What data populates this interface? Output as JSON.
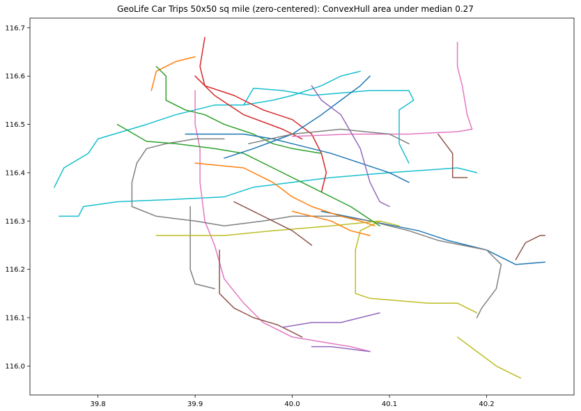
{
  "chart_data": {
    "type": "line",
    "title": "GeoLife Car Trips 50x50 sq mile (zero-centered): ConvexHull area under median 0.27",
    "xlabel": "",
    "ylabel": "",
    "xlim": [
      39.73,
      40.29
    ],
    "ylim": [
      115.94,
      116.72
    ],
    "x_ticks": [
      39.8,
      39.9,
      40.0,
      40.1,
      40.2
    ],
    "y_ticks": [
      116.0,
      116.1,
      116.2,
      116.3,
      116.4,
      116.5,
      116.6,
      116.7
    ],
    "x_tick_labels": [
      "39.8",
      "39.9",
      "40.0",
      "40.1",
      "40.2"
    ],
    "y_tick_labels": [
      "116.0",
      "116.1",
      "116.2",
      "116.3",
      "116.4",
      "116.5",
      "116.6",
      "116.7"
    ],
    "grid": false,
    "legend": false,
    "colors": [
      "#1f77b4",
      "#ff7f0e",
      "#2ca02c",
      "#d62728",
      "#9467bd",
      "#8c564b",
      "#e377c2",
      "#7f7f7f",
      "#bcbd22",
      "#17becf"
    ],
    "series": [
      {
        "color": "#17becf",
        "points": [
          [
            39.76,
            116.31
          ],
          [
            39.78,
            116.31
          ],
          [
            39.785,
            116.33
          ],
          [
            39.82,
            116.34
          ],
          [
            39.88,
            116.345
          ],
          [
            39.93,
            116.35
          ],
          [
            39.96,
            116.37
          ],
          [
            40.0,
            116.38
          ],
          [
            40.04,
            116.39
          ],
          [
            40.1,
            116.4
          ],
          [
            40.17,
            116.41
          ],
          [
            40.19,
            116.4
          ]
        ]
      },
      {
        "color": "#17becf",
        "points": [
          [
            39.755,
            116.37
          ],
          [
            39.765,
            116.41
          ],
          [
            39.79,
            116.44
          ],
          [
            39.8,
            116.47
          ],
          [
            39.85,
            116.5
          ],
          [
            39.88,
            116.52
          ],
          [
            39.92,
            116.54
          ],
          [
            39.95,
            116.54
          ],
          [
            39.98,
            116.55
          ],
          [
            40.0,
            116.56
          ],
          [
            40.03,
            116.58
          ],
          [
            40.05,
            116.6
          ],
          [
            40.07,
            116.61
          ]
        ]
      },
      {
        "color": "#17becf",
        "points": [
          [
            39.95,
            116.54
          ],
          [
            39.96,
            116.575
          ],
          [
            39.99,
            116.57
          ],
          [
            40.02,
            116.56
          ],
          [
            40.08,
            116.57
          ],
          [
            40.1,
            116.57
          ],
          [
            40.12,
            116.57
          ],
          [
            40.125,
            116.55
          ],
          [
            40.11,
            116.53
          ],
          [
            40.11,
            116.46
          ],
          [
            40.12,
            116.42
          ]
        ]
      },
      {
        "color": "#ff7f0e",
        "points": [
          [
            39.855,
            116.57
          ],
          [
            39.86,
            116.61
          ],
          [
            39.88,
            116.63
          ],
          [
            39.9,
            116.64
          ]
        ]
      },
      {
        "color": "#2ca02c",
        "points": [
          [
            39.86,
            116.62
          ],
          [
            39.87,
            116.6
          ],
          [
            39.87,
            116.55
          ],
          [
            39.89,
            116.53
          ],
          [
            39.91,
            116.52
          ],
          [
            39.93,
            116.5
          ],
          [
            39.96,
            116.48
          ],
          [
            39.98,
            116.46
          ],
          [
            40.0,
            116.45
          ],
          [
            40.03,
            116.44
          ]
        ]
      },
      {
        "color": "#d62728",
        "points": [
          [
            39.91,
            116.68
          ],
          [
            39.905,
            116.62
          ],
          [
            39.91,
            116.58
          ],
          [
            39.94,
            116.56
          ],
          [
            39.97,
            116.53
          ],
          [
            40.0,
            116.51
          ],
          [
            40.02,
            116.48
          ],
          [
            40.03,
            116.44
          ],
          [
            40.035,
            116.4
          ],
          [
            40.03,
            116.36
          ]
        ]
      },
      {
        "color": "#d62728",
        "points": [
          [
            39.9,
            116.6
          ],
          [
            39.92,
            116.56
          ],
          [
            39.95,
            116.52
          ],
          [
            39.99,
            116.49
          ],
          [
            40.01,
            116.47
          ]
        ]
      },
      {
        "color": "#e377c2",
        "points": [
          [
            39.9,
            116.57
          ],
          [
            39.9,
            116.5
          ],
          [
            39.905,
            116.45
          ],
          [
            39.905,
            116.38
          ],
          [
            39.91,
            116.3
          ],
          [
            39.92,
            116.25
          ],
          [
            39.93,
            116.18
          ],
          [
            39.95,
            116.13
          ],
          [
            39.97,
            116.09
          ],
          [
            40.0,
            116.06
          ],
          [
            40.03,
            116.05
          ],
          [
            40.06,
            116.04
          ],
          [
            40.08,
            116.03
          ]
        ]
      },
      {
        "color": "#e377c2",
        "points": [
          [
            40.0,
            116.475
          ],
          [
            40.06,
            116.48
          ],
          [
            40.12,
            116.48
          ],
          [
            40.17,
            116.485
          ],
          [
            40.185,
            116.49
          ]
        ]
      },
      {
        "color": "#e377c2",
        "points": [
          [
            40.17,
            116.67
          ],
          [
            40.17,
            116.62
          ],
          [
            40.175,
            116.58
          ],
          [
            40.18,
            116.52
          ],
          [
            40.185,
            116.49
          ]
        ]
      },
      {
        "color": "#8c564b",
        "points": [
          [
            40.15,
            116.48
          ],
          [
            40.165,
            116.44
          ],
          [
            40.165,
            116.39
          ],
          [
            40.18,
            116.39
          ]
        ]
      },
      {
        "color": "#8c564b",
        "points": [
          [
            39.925,
            116.24
          ],
          [
            39.925,
            116.15
          ],
          [
            39.94,
            116.12
          ],
          [
            39.96,
            116.1
          ],
          [
            39.985,
            116.085
          ],
          [
            40.0,
            116.07
          ],
          [
            40.01,
            116.06
          ]
        ]
      },
      {
        "color": "#8c564b",
        "points": [
          [
            40.23,
            116.22
          ],
          [
            40.24,
            116.255
          ],
          [
            40.255,
            116.27
          ],
          [
            40.26,
            116.27
          ]
        ]
      },
      {
        "color": "#1f77b4",
        "points": [
          [
            40.03,
            116.32
          ],
          [
            40.08,
            116.3
          ],
          [
            40.13,
            116.28
          ],
          [
            40.16,
            116.26
          ],
          [
            40.2,
            116.24
          ],
          [
            40.23,
            116.21
          ],
          [
            40.26,
            116.215
          ]
        ]
      },
      {
        "color": "#7f7f7f",
        "points": [
          [
            39.93,
            116.47
          ],
          [
            39.9,
            116.47
          ],
          [
            39.87,
            116.46
          ],
          [
            39.85,
            116.45
          ],
          [
            39.84,
            116.42
          ],
          [
            39.835,
            116.38
          ],
          [
            39.835,
            116.33
          ],
          [
            39.86,
            116.31
          ],
          [
            39.9,
            116.3
          ],
          [
            39.93,
            116.29
          ],
          [
            39.97,
            116.3
          ],
          [
            40.0,
            116.31
          ],
          [
            40.05,
            116.31
          ],
          [
            40.08,
            116.3
          ],
          [
            40.12,
            116.28
          ],
          [
            40.15,
            116.26
          ],
          [
            40.2,
            116.24
          ],
          [
            40.215,
            116.21
          ],
          [
            40.21,
            116.16
          ],
          [
            40.195,
            116.12
          ],
          [
            40.19,
            116.1
          ]
        ]
      },
      {
        "color": "#7f7f7f",
        "points": [
          [
            39.895,
            116.33
          ],
          [
            39.895,
            116.2
          ],
          [
            39.9,
            116.17
          ],
          [
            39.92,
            116.16
          ]
        ]
      },
      {
        "color": "#bcbd22",
        "points": [
          [
            40.09,
            116.3
          ],
          [
            40.07,
            116.28
          ],
          [
            40.065,
            116.24
          ],
          [
            40.065,
            116.15
          ],
          [
            40.08,
            116.14
          ],
          [
            40.14,
            116.13
          ],
          [
            40.17,
            116.13
          ],
          [
            40.19,
            116.11
          ]
        ]
      },
      {
        "color": "#bcbd22",
        "points": [
          [
            40.17,
            116.06
          ],
          [
            40.19,
            116.03
          ],
          [
            40.21,
            116.0
          ],
          [
            40.23,
            115.98
          ],
          [
            40.235,
            115.975
          ]
        ]
      },
      {
        "color": "#bcbd22",
        "points": [
          [
            39.86,
            116.27
          ],
          [
            39.93,
            116.27
          ],
          [
            39.98,
            116.28
          ],
          [
            40.04,
            116.29
          ],
          [
            40.09,
            116.3
          ],
          [
            40.11,
            116.29
          ]
        ]
      },
      {
        "color": "#9467bd",
        "points": [
          [
            39.99,
            116.08
          ],
          [
            40.02,
            116.09
          ],
          [
            40.05,
            116.09
          ],
          [
            40.07,
            116.1
          ],
          [
            40.09,
            116.11
          ]
        ]
      },
      {
        "color": "#9467bd",
        "points": [
          [
            40.02,
            116.04
          ],
          [
            40.04,
            116.04
          ],
          [
            40.06,
            116.035
          ],
          [
            40.08,
            116.03
          ]
        ]
      },
      {
        "color": "#2ca02c",
        "points": [
          [
            39.82,
            116.5
          ],
          [
            39.85,
            116.465
          ],
          [
            39.88,
            116.46
          ],
          [
            39.92,
            116.45
          ],
          [
            39.95,
            116.44
          ],
          [
            39.98,
            116.41
          ],
          [
            40.02,
            116.37
          ],
          [
            40.06,
            116.33
          ],
          [
            40.09,
            116.29
          ]
        ]
      },
      {
        "color": "#1f77b4",
        "points": [
          [
            39.89,
            116.48
          ],
          [
            39.95,
            116.48
          ],
          [
            39.98,
            116.47
          ],
          [
            40.0,
            116.46
          ],
          [
            40.04,
            116.44
          ],
          [
            40.07,
            116.42
          ],
          [
            40.1,
            116.4
          ],
          [
            40.12,
            116.38
          ]
        ]
      },
      {
        "color": "#1f77b4",
        "points": [
          [
            39.93,
            116.43
          ],
          [
            39.96,
            116.45
          ],
          [
            40.0,
            116.48
          ],
          [
            40.03,
            116.52
          ],
          [
            40.05,
            116.55
          ],
          [
            40.07,
            116.58
          ],
          [
            40.08,
            116.6
          ]
        ]
      },
      {
        "color": "#ff7f0e",
        "points": [
          [
            39.9,
            116.42
          ],
          [
            39.95,
            116.41
          ],
          [
            39.98,
            116.38
          ],
          [
            40.0,
            116.35
          ],
          [
            40.02,
            116.33
          ],
          [
            40.05,
            116.31
          ],
          [
            40.07,
            116.3
          ],
          [
            40.085,
            116.29
          ]
        ]
      },
      {
        "color": "#ff7f0e",
        "points": [
          [
            40.0,
            116.32
          ],
          [
            40.04,
            116.3
          ],
          [
            40.06,
            116.28
          ],
          [
            40.08,
            116.27
          ]
        ]
      },
      {
        "color": "#7f7f7f",
        "points": [
          [
            39.955,
            116.46
          ],
          [
            40.0,
            116.48
          ],
          [
            40.05,
            116.49
          ],
          [
            40.1,
            116.48
          ],
          [
            40.12,
            116.46
          ]
        ]
      },
      {
        "color": "#8c564b",
        "points": [
          [
            39.94,
            116.34
          ],
          [
            39.96,
            116.32
          ],
          [
            39.98,
            116.3
          ],
          [
            40.0,
            116.28
          ],
          [
            40.02,
            116.25
          ]
        ]
      },
      {
        "color": "#9467bd",
        "points": [
          [
            40.02,
            116.58
          ],
          [
            40.03,
            116.55
          ],
          [
            40.05,
            116.52
          ],
          [
            40.07,
            116.45
          ],
          [
            40.08,
            116.38
          ],
          [
            40.09,
            116.34
          ],
          [
            40.1,
            116.33
          ]
        ]
      }
    ]
  }
}
